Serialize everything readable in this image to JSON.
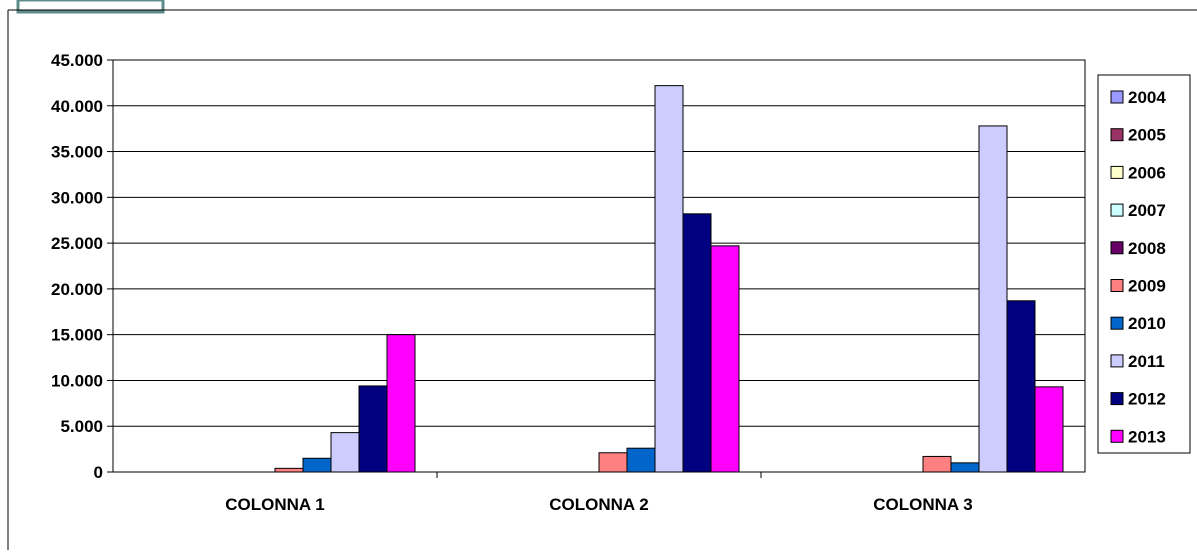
{
  "chart_data": {
    "type": "bar",
    "title": "",
    "xlabel": "",
    "ylabel": "",
    "categories": [
      "COLONNA 1",
      "COLONNA 2",
      "COLONNA 3"
    ],
    "ylim": [
      0,
      45000
    ],
    "yticks": [
      "0",
      "5.000",
      "10.000",
      "15.000",
      "20.000",
      "25.000",
      "30.000",
      "35.000",
      "40.000",
      "45.000"
    ],
    "grid": true,
    "legend_position": "right",
    "series": [
      {
        "name": "2004",
        "color": "#9999ff",
        "values": [
          0,
          0,
          0
        ]
      },
      {
        "name": "2005",
        "color": "#993366",
        "values": [
          0,
          0,
          0
        ]
      },
      {
        "name": "2006",
        "color": "#ffffcc",
        "values": [
          0,
          0,
          0
        ]
      },
      {
        "name": "2007",
        "color": "#ccffff",
        "values": [
          0,
          0,
          0
        ]
      },
      {
        "name": "2008",
        "color": "#660066",
        "values": [
          0,
          0,
          0
        ]
      },
      {
        "name": "2009",
        "color": "#ff8080",
        "values": [
          400,
          2100,
          1700
        ]
      },
      {
        "name": "2010",
        "color": "#0066cc",
        "values": [
          1500,
          2600,
          1000
        ]
      },
      {
        "name": "2011",
        "color": "#ccccff",
        "values": [
          4300,
          42200,
          37800
        ]
      },
      {
        "name": "2012",
        "color": "#000080",
        "values": [
          9400,
          28200,
          18700
        ]
      },
      {
        "name": "2013",
        "color": "#ff00ff",
        "values": [
          15000,
          24700,
          9300
        ]
      }
    ]
  }
}
